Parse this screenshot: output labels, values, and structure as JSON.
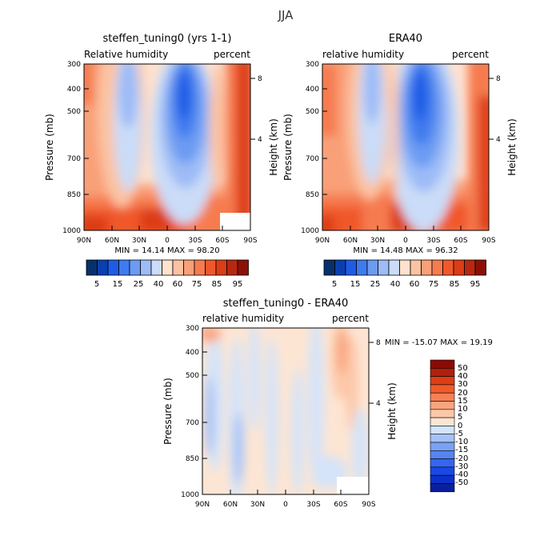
{
  "figure_title": "JJA",
  "colors": {
    "positive_field_scale": [
      "#08306b",
      "#0b3fb0",
      "#1f5ce6",
      "#3f7bee",
      "#6c9bf2",
      "#9dbbf6",
      "#cadcf8",
      "#fde2cf",
      "#fbc3a3",
      "#f9a078",
      "#f67c50",
      "#f0582c",
      "#dd3c16",
      "#b82810",
      "#8b1108"
    ],
    "diff_scale": [
      "#0a1f9e",
      "#0b31c8",
      "#1a48e6",
      "#3466ef",
      "#5585f2",
      "#7aa2f4",
      "#a5c1f7",
      "#d4e4f9",
      "#fde5d3",
      "#fcc8a9",
      "#faa47e",
      "#f78055",
      "#f05a2c",
      "#dc3e15",
      "#b0200c",
      "#8b0a05"
    ]
  },
  "chart_data": [
    {
      "type": "heatmap",
      "panel": "top-left",
      "title": "steffen_tuning0 (yrs 1-1)",
      "left_label": "Relative humidity",
      "right_label": "percent",
      "ylabel": "Pressure (mb)",
      "right_axis_label": "Height (km)",
      "x_ticks": [
        "90N",
        "60N",
        "30N",
        "0",
        "30S",
        "60S",
        "90S"
      ],
      "y_ticks": [
        "300",
        "400",
        "500",
        "700",
        "850",
        "1000"
      ],
      "height_ticks": [
        "8",
        "4"
      ],
      "min_max": "MIN =  14.14   MAX =  98.20",
      "colorbar_labels": [
        "5",
        "15",
        "25",
        "40",
        "60",
        "75",
        "85",
        "95"
      ]
    },
    {
      "type": "heatmap",
      "panel": "top-right",
      "title": "ERA40",
      "left_label": "relative humidity",
      "right_label": "percent",
      "ylabel": "Pressure (mb)",
      "right_axis_label": "Height (km)",
      "x_ticks": [
        "90N",
        "60N",
        "30N",
        "0",
        "30S",
        "60S",
        "90S"
      ],
      "y_ticks": [
        "300",
        "400",
        "500",
        "700",
        "850",
        "1000"
      ],
      "height_ticks": [
        "8",
        "4"
      ],
      "min_max": "MIN =  14.48   MAX =  96.32",
      "colorbar_labels": [
        "5",
        "15",
        "25",
        "40",
        "60",
        "75",
        "85",
        "95"
      ]
    },
    {
      "type": "heatmap",
      "panel": "bottom",
      "title": "steffen_tuning0 - ERA40",
      "left_label": "relative humidity",
      "right_label": "percent",
      "ylabel": "Pressure (mb)",
      "right_axis_label": "Height (km)",
      "x_ticks": [
        "90N",
        "60N",
        "30N",
        "0",
        "30S",
        "60S",
        "90S"
      ],
      "y_ticks": [
        "300",
        "400",
        "500",
        "700",
        "850",
        "1000"
      ],
      "height_ticks": [
        "8",
        "4"
      ],
      "min_max": "MIN = -15.07   MAX =  19.19",
      "colorbar_labels": [
        "50",
        "40",
        "30",
        "20",
        "15",
        "10",
        "5",
        "0",
        "-5",
        "-10",
        "-15",
        "-20",
        "-30",
        "-40",
        "-50"
      ]
    }
  ]
}
